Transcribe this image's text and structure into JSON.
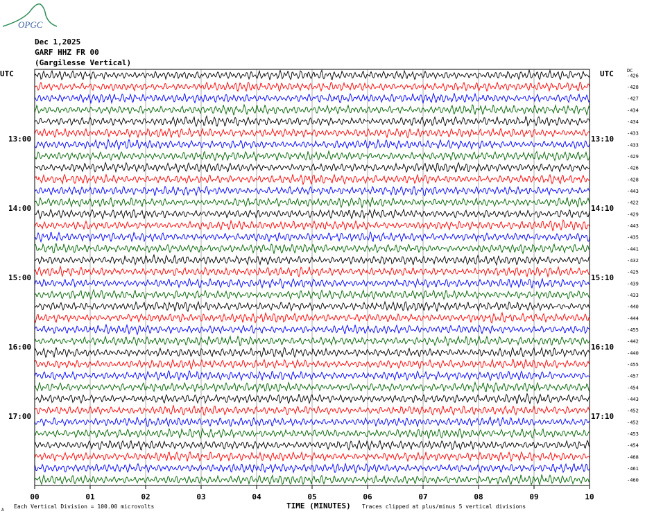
{
  "logo": {
    "text": "OPGC"
  },
  "header": {
    "date": "Dec 1,2025",
    "station": "GARF HHZ FR 00",
    "location": "(Gargilesse Vertical)"
  },
  "left_axis_label": "UTC",
  "right_axis_label": "UTC",
  "dc_label": "DC",
  "footer": {
    "scale_note": "Each Vertical Division =  100.00 microvolts",
    "clip_note": "Traces clipped at plus/minus 5 vertical divisions",
    "corner_mark": "A"
  },
  "chart_data": {
    "type": "line",
    "title": "",
    "xlabel": "TIME (MINUTES)",
    "ylabel": "",
    "xlim": [
      0,
      10
    ],
    "x_ticks": [
      "00",
      "01",
      "02",
      "03",
      "04",
      "05",
      "06",
      "07",
      "08",
      "09",
      "10"
    ],
    "left_time_labels": [
      {
        "trace": 6,
        "label": "13:00"
      },
      {
        "trace": 12,
        "label": "14:00"
      },
      {
        "trace": 18,
        "label": "15:00"
      },
      {
        "trace": 24,
        "label": "16:00"
      },
      {
        "trace": 30,
        "label": "17:00"
      }
    ],
    "right_time_labels": [
      {
        "trace": 6,
        "label": "13:10"
      },
      {
        "trace": 12,
        "label": "14:10"
      },
      {
        "trace": 18,
        "label": "15:10"
      },
      {
        "trace": 24,
        "label": "16:10"
      },
      {
        "trace": 30,
        "label": "17:10"
      }
    ],
    "trace_colors": [
      "#000000",
      "#ff0000",
      "#0000ff",
      "#006400"
    ],
    "trace_dc_offsets": [
      -426,
      -428,
      -427,
      -434,
      -434,
      -433,
      -433,
      -429,
      -426,
      -428,
      -443,
      -422,
      -429,
      -443,
      -435,
      -441,
      -432,
      -425,
      -439,
      -433,
      -440,
      -444,
      -455,
      -442,
      -440,
      -455,
      -457,
      -454,
      -443,
      -452,
      -452,
      -453,
      -454,
      -468,
      -461,
      -460
    ],
    "grid": true
  }
}
